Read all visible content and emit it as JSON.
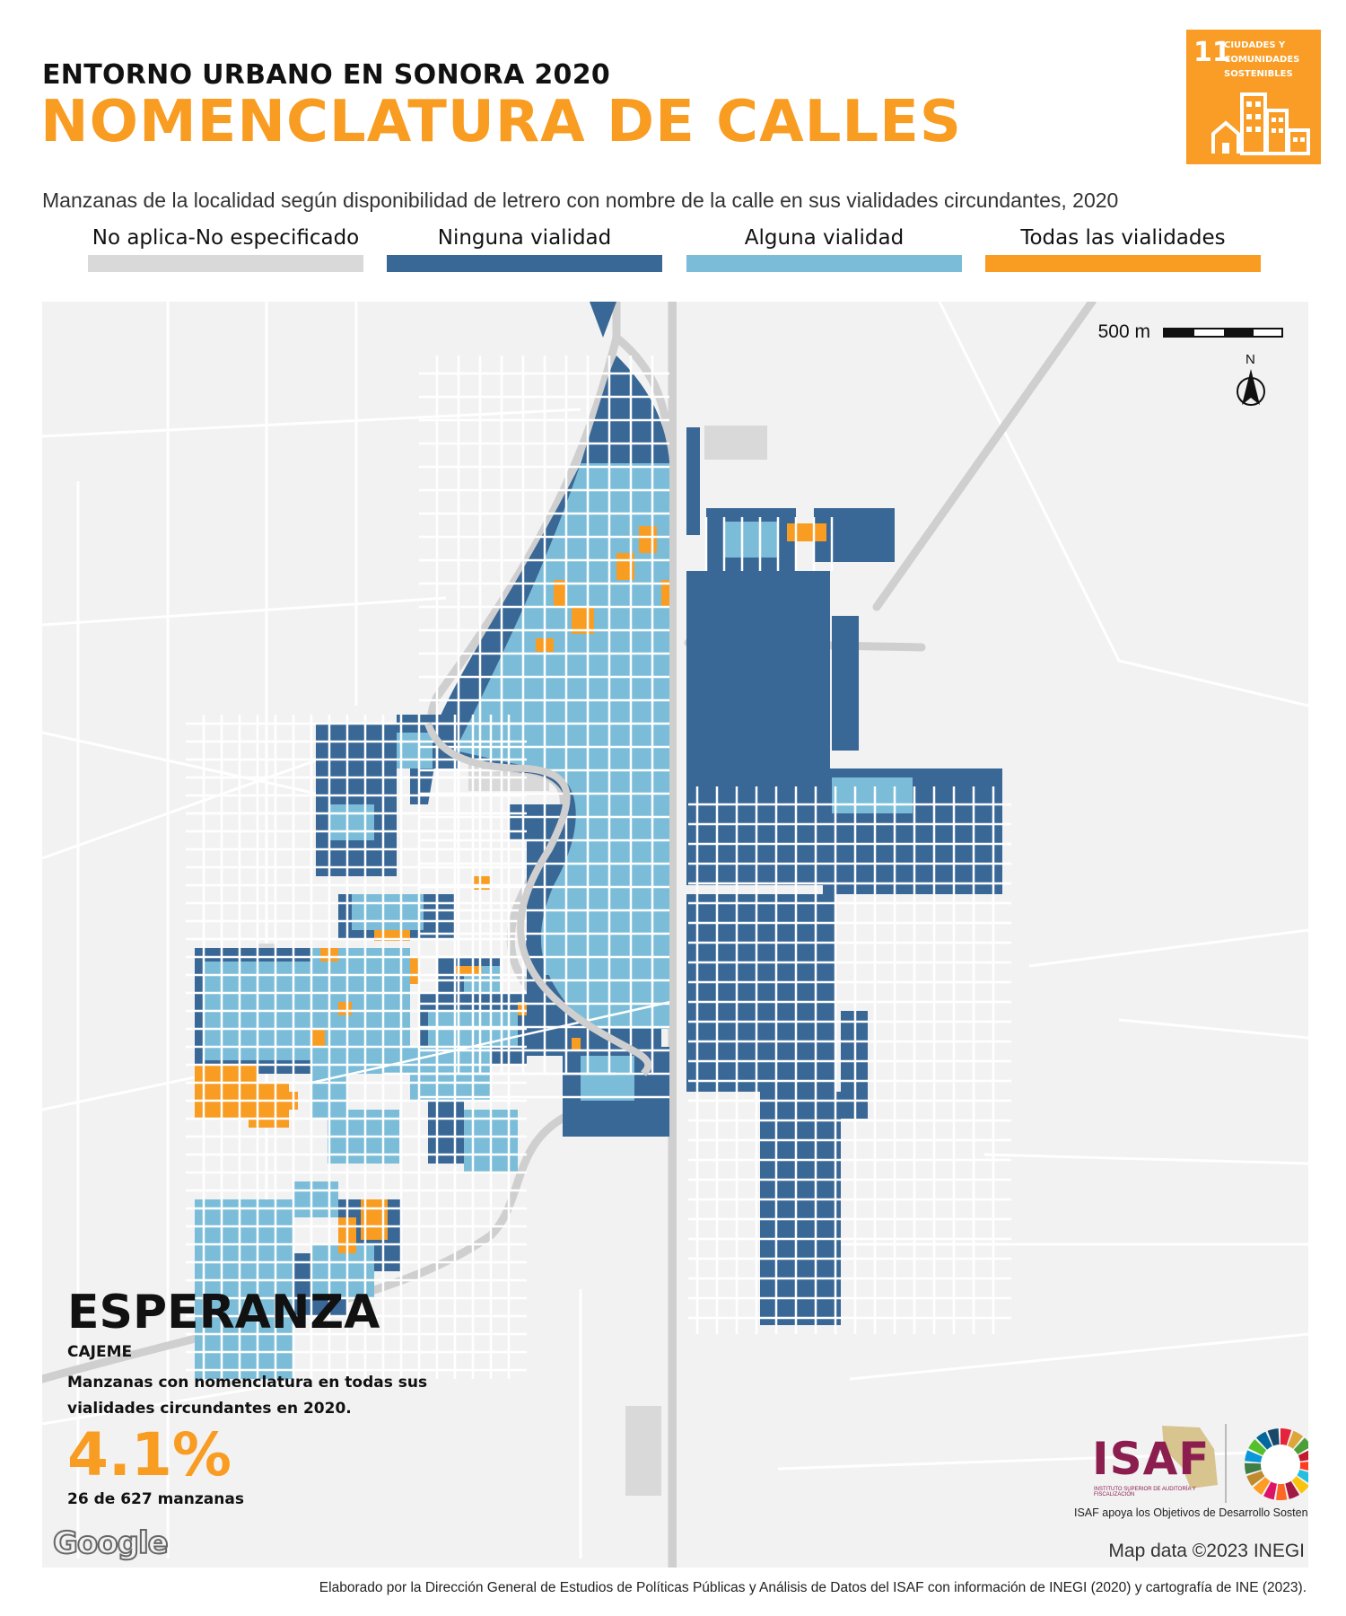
{
  "header": {
    "supertitle": "ENTORNO URBANO EN SONORA 2020",
    "title": "NOMENCLATURA DE CALLES",
    "subtitle": "Manzanas de la localidad según disponibilidad de letrero con nombre de la calle en sus vialidades circundantes, 2020"
  },
  "sdg_badge": {
    "number": "11",
    "label_line1": "CIUDADES Y",
    "label_line2": "COMUNIDADES",
    "label_line3": "SOSTENIBLES",
    "color": "#F99D26"
  },
  "legend": {
    "items": [
      {
        "label": "No aplica-No especificado",
        "color": "#D9D9D9"
      },
      {
        "label": "Ninguna vialidad",
        "color": "#396796"
      },
      {
        "label": "Alguna vialidad",
        "color": "#7BBDD8"
      },
      {
        "label": "Todas las vialidades",
        "color": "#F89C22"
      }
    ]
  },
  "map": {
    "scale_label": "500 m",
    "north_label": "N",
    "attribution": "Map data ©2023 INEGI",
    "google_label": "Google",
    "colors": {
      "none": "#396796",
      "some": "#7BBDD8",
      "all": "#F89C22",
      "na": "#D9D9D9",
      "road": "#cfcfcf",
      "street": "#ffffff",
      "background": "#f2f2f2"
    }
  },
  "locality": {
    "name": "ESPERANZA",
    "municipality": "CAJEME",
    "description": "Manzanas con nomenclatura en todas sus vialidades circundantes en 2020.",
    "percent": "4.1%",
    "count_text": "26 de 627 manzanas"
  },
  "isaf": {
    "logo": "ISAF",
    "institution": "INSTITUTO SUPERIOR DE AUDITORÍA Y FISCALIZACIÓN",
    "tagline": "ISAF apoya los Objetivos de Desarrollo Sostenible"
  },
  "footnote": "Elaborado por la Dirección General de Estudios de Políticas Públicas y Análisis de Datos del ISAF con información de INEGI (2020) y cartografía de INE (2023)."
}
